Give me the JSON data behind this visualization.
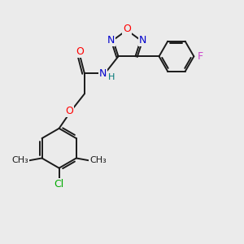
{
  "bg_color": "#ebebeb",
  "bond_color": "#1a1a1a",
  "atom_colors": {
    "O": "#ff0000",
    "N": "#0000cc",
    "F": "#cc44cc",
    "Cl": "#00aa00",
    "H": "#007777",
    "C": "#1a1a1a"
  },
  "font_size": 9,
  "line_width": 1.4,
  "figsize": [
    3.0,
    3.0
  ],
  "dpi": 100
}
